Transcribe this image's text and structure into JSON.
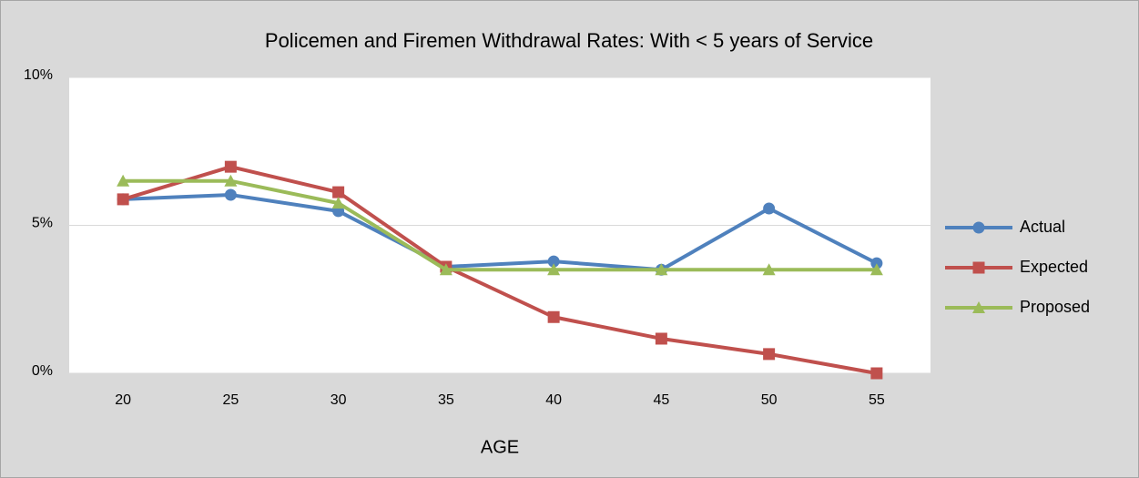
{
  "chart_data": {
    "type": "line",
    "title": "Policemen and Firemen Withdrawal Rates:  With < 5 years of Service",
    "x_label": "AGE",
    "categories": [
      20,
      25,
      30,
      35,
      40,
      45,
      50,
      55
    ],
    "series": [
      {
        "name": "Actual",
        "color": "#4f81bd",
        "marker": "circle",
        "values": [
          5.88,
          6.03,
          5.48,
          3.6,
          3.78,
          3.5,
          5.57,
          3.72
        ]
      },
      {
        "name": "Expected",
        "color": "#c0504d",
        "marker": "square",
        "values": [
          5.88,
          6.98,
          6.12,
          3.6,
          1.9,
          1.17,
          0.65,
          0
        ]
      },
      {
        "name": "Proposed",
        "color": "#9bbb59",
        "marker": "triangle",
        "values": [
          6.5,
          6.5,
          5.75,
          3.5,
          3.5,
          3.5,
          3.5,
          3.5
        ]
      }
    ],
    "ylim": [
      0,
      10
    ],
    "yticks": [
      {
        "value": 0,
        "label": "0%"
      },
      {
        "value": 5,
        "label": "5%"
      },
      {
        "value": 10,
        "label": "10%"
      }
    ],
    "grid": true,
    "legend": "right"
  }
}
